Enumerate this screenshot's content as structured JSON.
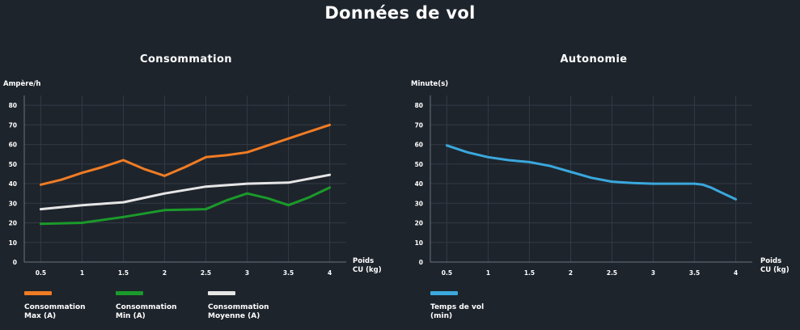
{
  "title": "Données de vol",
  "colors": {
    "background": "#1e242c",
    "grid": "#333a44",
    "max": "#f07c24",
    "min": "#1a9a2a",
    "moyenne": "#e6e6e6",
    "temps": "#3aa8dc"
  },
  "chart_data": [
    {
      "type": "line",
      "title": "Consommation",
      "ylabel": "Ampère/h",
      "xlabel": [
        "Poids",
        "CU (kg)"
      ],
      "ylim": [
        0,
        85
      ],
      "xlim": [
        0.3,
        4.2
      ],
      "yticks": [
        "0",
        "10",
        "20",
        "30",
        "40",
        "50",
        "60",
        "70",
        "80"
      ],
      "xticks": [
        "0.5",
        "1",
        "1.5",
        "2",
        "2.5",
        "3",
        "3.5",
        "4"
      ],
      "grid": true,
      "legend_position": "bottom",
      "series": [
        {
          "name": [
            "Consommation",
            "Max (A)"
          ],
          "color": "#f07c24",
          "x": [
            0.5,
            0.75,
            1.0,
            1.25,
            1.5,
            1.75,
            2.0,
            2.25,
            2.5,
            2.75,
            3.0,
            3.25,
            3.5,
            3.75,
            4.0
          ],
          "y": [
            39.5,
            42,
            45.5,
            48.5,
            52,
            47.5,
            44,
            48.5,
            53.5,
            54.5,
            56,
            59.5,
            63,
            66.5,
            70
          ]
        },
        {
          "name": [
            "Consommation",
            "Min (A)"
          ],
          "color": "#1a9a2a",
          "x": [
            0.5,
            1.0,
            1.5,
            2.0,
            2.5,
            2.75,
            3.0,
            3.25,
            3.5,
            3.75,
            4.0
          ],
          "y": [
            19.5,
            20,
            23,
            26.5,
            27,
            31.5,
            35,
            32.5,
            29,
            33,
            38
          ]
        },
        {
          "name": [
            "Consommation",
            "Moyenne (A)"
          ],
          "color": "#e6e6e6",
          "x": [
            0.5,
            1.0,
            1.5,
            2.0,
            2.5,
            3.0,
            3.5,
            4.0
          ],
          "y": [
            27,
            29,
            30.5,
            35,
            38.5,
            40,
            40.5,
            44.5
          ]
        }
      ]
    },
    {
      "type": "line",
      "title": "Autonomie",
      "ylabel": "Minute(s)",
      "xlabel": [
        "Poids",
        "CU (kg)"
      ],
      "ylim": [
        0,
        85
      ],
      "xlim": [
        0.3,
        4.2
      ],
      "yticks": [
        "0",
        "10",
        "20",
        "30",
        "40",
        "50",
        "60",
        "70",
        "80"
      ],
      "xticks": [
        "0.5",
        "1",
        "1.5",
        "2",
        "2.5",
        "3",
        "3.5",
        "4"
      ],
      "grid": true,
      "legend_position": "bottom",
      "series": [
        {
          "name": [
            "Temps de vol",
            "(min)"
          ],
          "color": "#3aa8dc",
          "x": [
            0.5,
            0.75,
            1.0,
            1.25,
            1.5,
            1.75,
            2.0,
            2.25,
            2.5,
            2.75,
            3.0,
            3.25,
            3.5,
            3.6,
            3.7,
            3.8,
            3.9,
            4.0
          ],
          "y": [
            59.5,
            56,
            53.5,
            52,
            51,
            49,
            46,
            43,
            41,
            40.3,
            40,
            40,
            40,
            39.5,
            38,
            36,
            34,
            32
          ]
        }
      ]
    }
  ]
}
